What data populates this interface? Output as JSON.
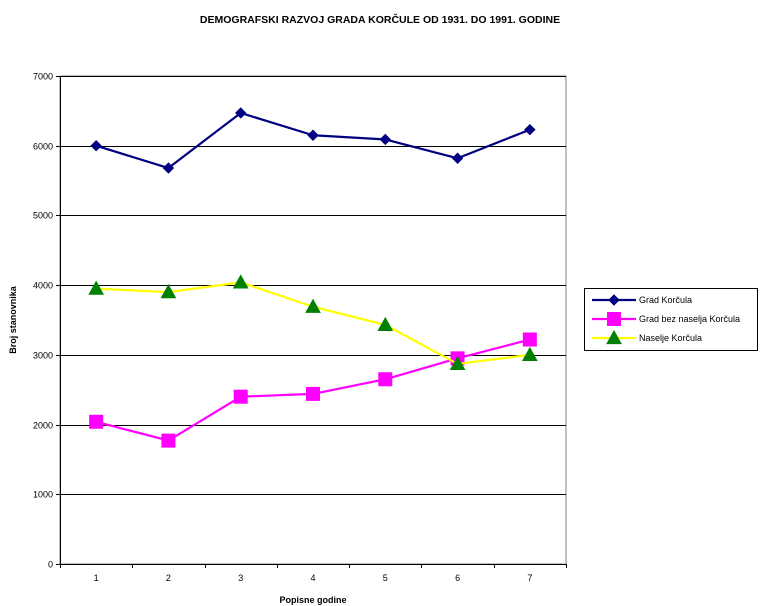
{
  "chart_data": {
    "type": "line",
    "title": "DEMOGRAFSKI RAZVOJ GRADA KORČULE OD 1931. DO 1991. GODINE",
    "xlabel": "Popisne godine",
    "ylabel": "Broj stanovnika",
    "categories": [
      "1",
      "2",
      "3",
      "4",
      "5",
      "6",
      "7"
    ],
    "ylim": [
      0,
      7000
    ],
    "yticks": [
      0,
      1000,
      2000,
      3000,
      4000,
      5000,
      6000,
      7000
    ],
    "grid": true,
    "legend_position": "right",
    "series": [
      {
        "name": "Grad Korčula",
        "values": [
          6000,
          5680,
          6470,
          6150,
          6090,
          5820,
          6230
        ],
        "color": "#000080",
        "marker": "diamond",
        "marker_color": "#000080"
      },
      {
        "name": "Grad bez naselja Korčula",
        "values": [
          2040,
          1770,
          2400,
          2440,
          2650,
          2950,
          3220
        ],
        "color": "#ff00ff",
        "marker": "square",
        "marker_color": "#ff00ff"
      },
      {
        "name": "Naselje Korčula",
        "values": [
          3950,
          3900,
          4040,
          3690,
          3430,
          2870,
          3000
        ],
        "color": "#ffff00",
        "marker": "triangle",
        "marker_color": "#008000"
      }
    ]
  }
}
